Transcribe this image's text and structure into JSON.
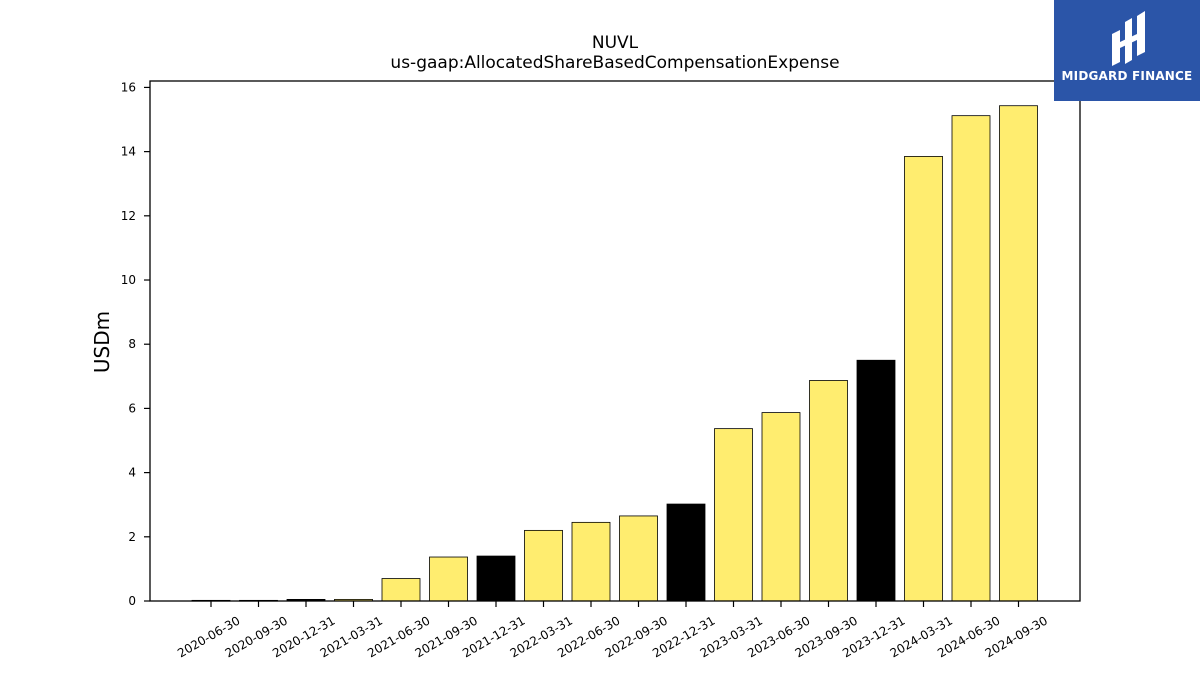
{
  "logo": {
    "name": "MIDGARD FINANCE"
  },
  "chart_data": {
    "type": "bar",
    "title": "NUVL",
    "subtitle": "us-gaap:AllocatedShareBasedCompensationExpense",
    "ylabel": "USDm",
    "xlabel": "",
    "ylim": [
      0,
      16.2
    ],
    "yticks": [
      0,
      2,
      4,
      6,
      8,
      10,
      12,
      14,
      16
    ],
    "grid": false,
    "categories": [
      "2020-06-30",
      "2020-09-30",
      "2020-12-31",
      "2021-03-31",
      "2021-06-30",
      "2021-09-30",
      "2021-12-31",
      "2022-03-31",
      "2022-06-30",
      "2022-09-30",
      "2022-12-31",
      "2023-03-31",
      "2023-06-30",
      "2023-09-30",
      "2023-12-31",
      "2024-03-31",
      "2024-06-30",
      "2024-09-30"
    ],
    "values": [
      0.02,
      0.02,
      0.05,
      0.05,
      0.7,
      1.37,
      1.4,
      2.2,
      2.45,
      2.65,
      3.02,
      5.37,
      5.87,
      6.87,
      7.5,
      13.85,
      15.12,
      15.43
    ],
    "colors": [
      "#ffed6f",
      "#ffed6f",
      "#000000",
      "#ffed6f",
      "#ffed6f",
      "#ffed6f",
      "#000000",
      "#ffed6f",
      "#ffed6f",
      "#ffed6f",
      "#000000",
      "#ffed6f",
      "#ffed6f",
      "#ffed6f",
      "#000000",
      "#ffed6f",
      "#ffed6f",
      "#ffed6f"
    ]
  }
}
